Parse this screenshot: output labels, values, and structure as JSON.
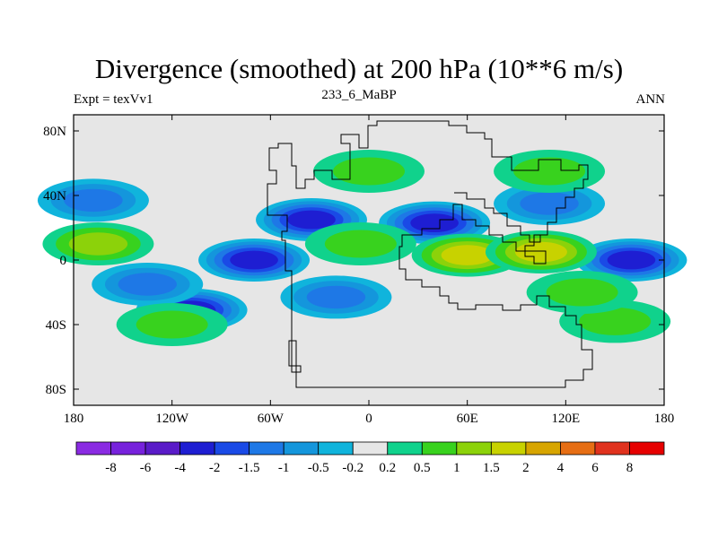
{
  "chart_data": {
    "type": "heatmap",
    "title": "Divergence (smoothed) at 200 hPa (10**6 m/s)",
    "subtitle_left": "Expt = texVv1",
    "subtitle_center": "233_6_MaBP",
    "subtitle_right": "ANN",
    "xlim": [
      -180,
      180
    ],
    "ylim": [
      -90,
      90
    ],
    "x_ticks": [
      {
        "value": -180,
        "label": "180"
      },
      {
        "value": -120,
        "label": "120W"
      },
      {
        "value": -60,
        "label": "60W"
      },
      {
        "value": 0,
        "label": "0"
      },
      {
        "value": 60,
        "label": "60E"
      },
      {
        "value": 120,
        "label": "120E"
      },
      {
        "value": 180,
        "label": "180"
      }
    ],
    "y_ticks": [
      {
        "value": 80,
        "label": "80N"
      },
      {
        "value": 40,
        "label": "40N"
      },
      {
        "value": 0,
        "label": "0"
      },
      {
        "value": -40,
        "label": "40S"
      },
      {
        "value": -80,
        "label": "80S"
      }
    ],
    "colorbar": {
      "labels": [
        "-8",
        "-6",
        "-4",
        "-2",
        "-1.5",
        "-1",
        "-0.5",
        "-0.2",
        "0.2",
        "0.5",
        "1",
        "1.5",
        "2",
        "4",
        "6",
        "8"
      ],
      "colors": [
        "#8A2BE2",
        "#7722DC",
        "#5A1BC8",
        "#1E1ED2",
        "#1A4AE6",
        "#1E78E6",
        "#1496DC",
        "#10B4DC",
        "#E6E6E6",
        "#10D28C",
        "#38D21E",
        "#8CD20A",
        "#C8D200",
        "#D7A500",
        "#E66E14",
        "#E0321E",
        "#E60000"
      ]
    },
    "field_centers": [
      {
        "lon": -108,
        "lat": -31,
        "value": -3
      },
      {
        "lon": -70,
        "lat": 0,
        "value": -2.5
      },
      {
        "lon": -35,
        "lat": 25,
        "value": -3
      },
      {
        "lon": 40,
        "lat": 23,
        "value": -2
      },
      {
        "lon": 160,
        "lat": 0,
        "value": -3
      },
      {
        "lon": -168,
        "lat": 37,
        "value": -1.2
      },
      {
        "lon": -135,
        "lat": -15,
        "value": -1.2
      },
      {
        "lon": -20,
        "lat": -23,
        "value": -1.2
      },
      {
        "lon": 110,
        "lat": 35,
        "value": -1.0
      },
      {
        "lon": 60,
        "lat": 3,
        "value": 1.8
      },
      {
        "lon": 105,
        "lat": 5,
        "value": 1.6
      },
      {
        "lon": -165,
        "lat": 10,
        "value": 1.2
      },
      {
        "lon": -5,
        "lat": 10,
        "value": 0.8
      },
      {
        "lon": 0,
        "lat": 55,
        "value": 0.8
      },
      {
        "lon": 110,
        "lat": 55,
        "value": 0.6
      },
      {
        "lon": 150,
        "lat": -38,
        "value": 0.6
      },
      {
        "lon": -120,
        "lat": -40,
        "value": 0.6
      },
      {
        "lon": 130,
        "lat": -20,
        "value": 0.8
      }
    ]
  }
}
